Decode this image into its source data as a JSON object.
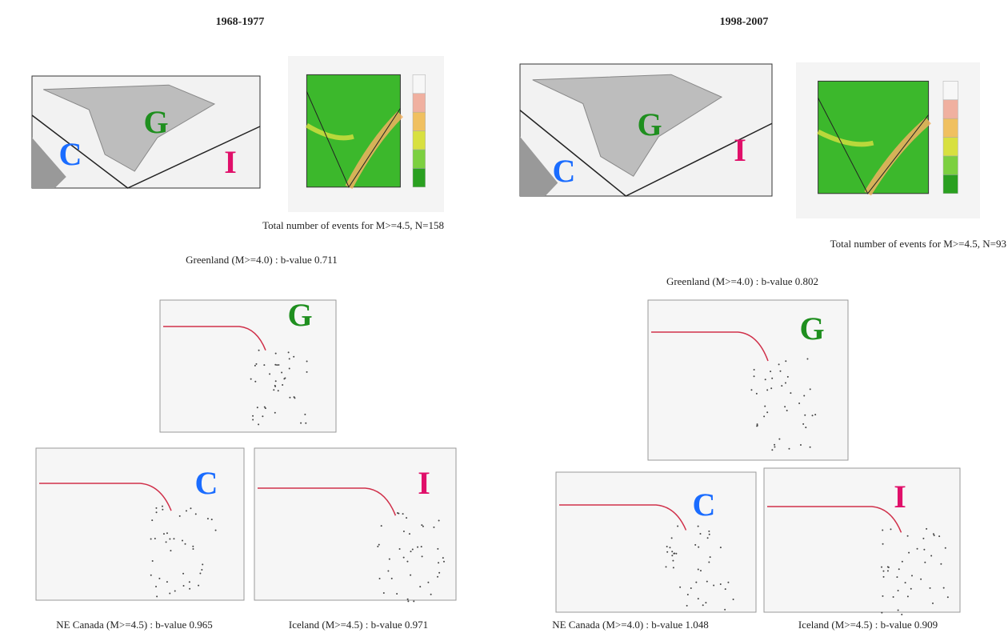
{
  "panels": [
    {
      "period": "1968-1977",
      "map_labels": [
        "G",
        "C",
        "I"
      ],
      "events_caption": "Total number of events for M>=4.5, N=158",
      "plots": [
        {
          "title": "Greenland (M>=4.0) : b-value 0.711",
          "region": "G"
        },
        {
          "title": "NE Canada (M>=4.5) : b-value 0.965",
          "region": "C"
        },
        {
          "title": "Iceland (M>=4.5) : b-value 0.971",
          "region": "I"
        }
      ]
    },
    {
      "period": "1998-2007",
      "map_labels": [
        "G",
        "C",
        "I"
      ],
      "events_caption": "Total number of events for M>=4.5, N=93",
      "plots": [
        {
          "title": "Greenland (M>=4.0) : b-value 0.802",
          "region": "G"
        },
        {
          "title": "NE Canada (M>=4.0) : b-value 1.048",
          "region": "C"
        },
        {
          "title": "Iceland (M>=4.5) : b-value 0.909",
          "region": "I"
        }
      ]
    }
  ]
}
